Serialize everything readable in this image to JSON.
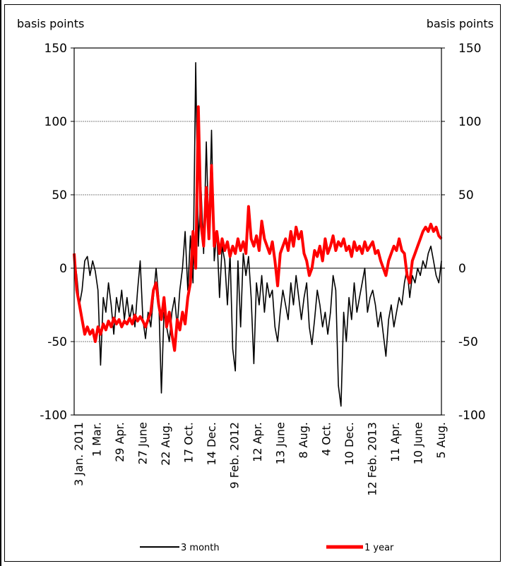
{
  "chart_data": {
    "type": "line",
    "ylabel_left": "basis points",
    "ylabel_right": "basis points",
    "ylim": [
      -100,
      150
    ],
    "yticks": [
      "150",
      "100",
      "50",
      "0",
      "-50",
      "-100"
    ],
    "grid": "horizontal",
    "legend_position": "bottom",
    "xtick_labels": [
      "3 Jan. 2011",
      "1 Mar.",
      "29 Apr.",
      "27 June",
      "22 Aug.",
      "17 Oct.",
      "14 Dec.",
      "9 Feb. 2012",
      "12 Apr.",
      "13 June",
      "8 Aug.",
      "4 Oct.",
      "10 Dec.",
      "12 Feb. 2013",
      "11 Apr.",
      "10 June",
      "5 Aug."
    ],
    "series": [
      {
        "name": "3 month",
        "color": "#000000",
        "points": [
          [
            "2011-01-03",
            8
          ],
          [
            "2011-01-10",
            -5
          ],
          [
            "2011-01-17",
            -25
          ],
          [
            "2011-01-24",
            -15
          ],
          [
            "2011-01-31",
            5
          ],
          [
            "2011-02-07",
            8
          ],
          [
            "2011-02-14",
            -5
          ],
          [
            "2011-02-21",
            5
          ],
          [
            "2011-02-28",
            -2
          ],
          [
            "2011-03-07",
            -15
          ],
          [
            "2011-03-14",
            -66
          ],
          [
            "2011-03-21",
            -20
          ],
          [
            "2011-03-28",
            -30
          ],
          [
            "2011-04-04",
            -10
          ],
          [
            "2011-04-11",
            -25
          ],
          [
            "2011-04-18",
            -45
          ],
          [
            "2011-04-25",
            -20
          ],
          [
            "2011-05-02",
            -30
          ],
          [
            "2011-05-09",
            -15
          ],
          [
            "2011-05-16",
            -35
          ],
          [
            "2011-05-23",
            -20
          ],
          [
            "2011-05-30",
            -35
          ],
          [
            "2011-06-06",
            -25
          ],
          [
            "2011-06-13",
            -40
          ],
          [
            "2011-06-20",
            -15
          ],
          [
            "2011-06-27",
            5
          ],
          [
            "2011-07-04",
            -35
          ],
          [
            "2011-07-11",
            -48
          ],
          [
            "2011-07-18",
            -30
          ],
          [
            "2011-07-25",
            -40
          ],
          [
            "2011-08-01",
            -20
          ],
          [
            "2011-08-08",
            0
          ],
          [
            "2011-08-15",
            -20
          ],
          [
            "2011-08-22",
            -85
          ],
          [
            "2011-08-29",
            -30
          ],
          [
            "2011-09-05",
            -40
          ],
          [
            "2011-09-12",
            -50
          ],
          [
            "2011-09-19",
            -30
          ],
          [
            "2011-09-26",
            -20
          ],
          [
            "2011-10-03",
            -40
          ],
          [
            "2011-10-10",
            -15
          ],
          [
            "2011-10-17",
            0
          ],
          [
            "2011-10-24",
            25
          ],
          [
            "2011-10-31",
            -15
          ],
          [
            "2011-11-07",
            22
          ],
          [
            "2011-11-14",
            -10
          ],
          [
            "2011-11-21",
            140
          ],
          [
            "2011-11-28",
            15
          ],
          [
            "2011-12-05",
            55
          ],
          [
            "2011-12-12",
            10
          ],
          [
            "2011-12-19",
            86
          ],
          [
            "2011-12-26",
            20
          ],
          [
            "2012-01-02",
            94
          ],
          [
            "2012-01-09",
            5
          ],
          [
            "2012-01-16",
            25
          ],
          [
            "2012-01-23",
            -20
          ],
          [
            "2012-01-30",
            15
          ],
          [
            "2012-02-06",
            5
          ],
          [
            "2012-02-13",
            -25
          ],
          [
            "2012-02-20",
            10
          ],
          [
            "2012-02-27",
            -55
          ],
          [
            "2012-03-05",
            -70
          ],
          [
            "2012-03-12",
            5
          ],
          [
            "2012-03-19",
            -40
          ],
          [
            "2012-03-26",
            10
          ],
          [
            "2012-04-02",
            -5
          ],
          [
            "2012-04-09",
            8
          ],
          [
            "2012-04-16",
            -20
          ],
          [
            "2012-04-23",
            -65
          ],
          [
            "2012-04-30",
            -10
          ],
          [
            "2012-05-07",
            -25
          ],
          [
            "2012-05-14",
            -5
          ],
          [
            "2012-05-21",
            -30
          ],
          [
            "2012-05-28",
            -10
          ],
          [
            "2012-06-04",
            -20
          ],
          [
            "2012-06-11",
            -15
          ],
          [
            "2012-06-18",
            -40
          ],
          [
            "2012-06-25",
            -50
          ],
          [
            "2012-07-02",
            -30
          ],
          [
            "2012-07-09",
            -15
          ],
          [
            "2012-07-16",
            -25
          ],
          [
            "2012-07-23",
            -35
          ],
          [
            "2012-07-30",
            -10
          ],
          [
            "2012-08-06",
            -25
          ],
          [
            "2012-08-13",
            -5
          ],
          [
            "2012-08-20",
            -20
          ],
          [
            "2012-08-27",
            -35
          ],
          [
            "2012-09-03",
            -20
          ],
          [
            "2012-09-10",
            -10
          ],
          [
            "2012-09-17",
            -40
          ],
          [
            "2012-09-24",
            -52
          ],
          [
            "2012-10-01",
            -35
          ],
          [
            "2012-10-08",
            -15
          ],
          [
            "2012-10-15",
            -25
          ],
          [
            "2012-10-22",
            -40
          ],
          [
            "2012-10-29",
            -30
          ],
          [
            "2012-11-05",
            -45
          ],
          [
            "2012-11-12",
            -30
          ],
          [
            "2012-11-19",
            -5
          ],
          [
            "2012-11-26",
            -15
          ],
          [
            "2012-12-03",
            -80
          ],
          [
            "2012-12-10",
            -94
          ],
          [
            "2012-12-17",
            -30
          ],
          [
            "2012-12-24",
            -50
          ],
          [
            "2012-12-31",
            -20
          ],
          [
            "2013-01-07",
            -35
          ],
          [
            "2013-01-14",
            -10
          ],
          [
            "2013-01-21",
            -30
          ],
          [
            "2013-01-28",
            -20
          ],
          [
            "2013-02-04",
            -10
          ],
          [
            "2013-02-11",
            0
          ],
          [
            "2013-02-18",
            -30
          ],
          [
            "2013-02-25",
            -20
          ],
          [
            "2013-03-04",
            -15
          ],
          [
            "2013-03-11",
            -25
          ],
          [
            "2013-03-18",
            -40
          ],
          [
            "2013-03-25",
            -30
          ],
          [
            "2013-04-01",
            -45
          ],
          [
            "2013-04-08",
            -60
          ],
          [
            "2013-04-15",
            -35
          ],
          [
            "2013-04-22",
            -25
          ],
          [
            "2013-04-29",
            -40
          ],
          [
            "2013-05-06",
            -30
          ],
          [
            "2013-05-13",
            -20
          ],
          [
            "2013-05-20",
            -25
          ],
          [
            "2013-05-27",
            -10
          ],
          [
            "2013-06-03",
            0
          ],
          [
            "2013-06-10",
            -20
          ],
          [
            "2013-06-17",
            -5
          ],
          [
            "2013-06-24",
            -10
          ],
          [
            "2013-07-01",
            0
          ],
          [
            "2013-07-08",
            -5
          ],
          [
            "2013-07-15",
            5
          ],
          [
            "2013-07-22",
            0
          ],
          [
            "2013-07-29",
            10
          ],
          [
            "2013-08-05",
            15
          ],
          [
            "2013-08-12",
            5
          ],
          [
            "2013-08-19",
            -5
          ],
          [
            "2013-08-26",
            -10
          ],
          [
            "2013-09-02",
            5
          ]
        ]
      },
      {
        "name": "1 year",
        "color": "#ff0000",
        "points": [
          [
            "2011-01-03",
            10
          ],
          [
            "2011-01-10",
            -15
          ],
          [
            "2011-01-17",
            -25
          ],
          [
            "2011-01-24",
            -35
          ],
          [
            "2011-01-31",
            -45
          ],
          [
            "2011-02-07",
            -40
          ],
          [
            "2011-02-14",
            -45
          ],
          [
            "2011-02-21",
            -42
          ],
          [
            "2011-02-28",
            -50
          ],
          [
            "2011-03-07",
            -40
          ],
          [
            "2011-03-14",
            -45
          ],
          [
            "2011-03-21",
            -38
          ],
          [
            "2011-03-28",
            -42
          ],
          [
            "2011-04-04",
            -36
          ],
          [
            "2011-04-11",
            -40
          ],
          [
            "2011-04-18",
            -34
          ],
          [
            "2011-04-25",
            -38
          ],
          [
            "2011-05-02",
            -35
          ],
          [
            "2011-05-09",
            -40
          ],
          [
            "2011-05-16",
            -36
          ],
          [
            "2011-05-23",
            -38
          ],
          [
            "2011-05-30",
            -34
          ],
          [
            "2011-06-06",
            -38
          ],
          [
            "2011-06-13",
            -32
          ],
          [
            "2011-06-20",
            -36
          ],
          [
            "2011-06-27",
            -33
          ],
          [
            "2011-07-04",
            -36
          ],
          [
            "2011-07-11",
            -40
          ],
          [
            "2011-07-18",
            -35
          ],
          [
            "2011-07-25",
            -30
          ],
          [
            "2011-08-01",
            -15
          ],
          [
            "2011-08-08",
            -10
          ],
          [
            "2011-08-15",
            -25
          ],
          [
            "2011-08-22",
            -35
          ],
          [
            "2011-08-29",
            -20
          ],
          [
            "2011-09-05",
            -40
          ],
          [
            "2011-09-12",
            -30
          ],
          [
            "2011-09-19",
            -45
          ],
          [
            "2011-09-26",
            -56
          ],
          [
            "2011-10-03",
            -35
          ],
          [
            "2011-10-10",
            -42
          ],
          [
            "2011-10-17",
            -30
          ],
          [
            "2011-10-24",
            -38
          ],
          [
            "2011-10-31",
            -20
          ],
          [
            "2011-11-07",
            -10
          ],
          [
            "2011-11-14",
            25
          ],
          [
            "2011-11-21",
            0
          ],
          [
            "2011-11-28",
            110
          ],
          [
            "2011-12-05",
            30
          ],
          [
            "2011-12-12",
            15
          ],
          [
            "2011-12-19",
            55
          ],
          [
            "2011-12-26",
            20
          ],
          [
            "2012-01-02",
            70
          ],
          [
            "2012-01-09",
            15
          ],
          [
            "2012-01-16",
            25
          ],
          [
            "2012-01-23",
            10
          ],
          [
            "2012-01-30",
            20
          ],
          [
            "2012-02-06",
            12
          ],
          [
            "2012-02-13",
            18
          ],
          [
            "2012-02-20",
            8
          ],
          [
            "2012-02-27",
            15
          ],
          [
            "2012-03-05",
            10
          ],
          [
            "2012-03-12",
            20
          ],
          [
            "2012-03-19",
            12
          ],
          [
            "2012-03-26",
            18
          ],
          [
            "2012-04-02",
            10
          ],
          [
            "2012-04-09",
            42
          ],
          [
            "2012-04-16",
            20
          ],
          [
            "2012-04-23",
            15
          ],
          [
            "2012-04-30",
            22
          ],
          [
            "2012-05-07",
            12
          ],
          [
            "2012-05-14",
            32
          ],
          [
            "2012-05-21",
            20
          ],
          [
            "2012-05-28",
            15
          ],
          [
            "2012-06-04",
            10
          ],
          [
            "2012-06-11",
            18
          ],
          [
            "2012-06-18",
            5
          ],
          [
            "2012-06-25",
            -12
          ],
          [
            "2012-07-02",
            10
          ],
          [
            "2012-07-09",
            15
          ],
          [
            "2012-07-16",
            20
          ],
          [
            "2012-07-23",
            12
          ],
          [
            "2012-07-30",
            25
          ],
          [
            "2012-08-06",
            15
          ],
          [
            "2012-08-13",
            28
          ],
          [
            "2012-08-20",
            20
          ],
          [
            "2012-08-27",
            25
          ],
          [
            "2012-09-03",
            10
          ],
          [
            "2012-09-10",
            5
          ],
          [
            "2012-09-17",
            -5
          ],
          [
            "2012-09-24",
            0
          ],
          [
            "2012-10-01",
            12
          ],
          [
            "2012-10-08",
            8
          ],
          [
            "2012-10-15",
            15
          ],
          [
            "2012-10-22",
            5
          ],
          [
            "2012-10-29",
            20
          ],
          [
            "2012-11-05",
            10
          ],
          [
            "2012-11-12",
            15
          ],
          [
            "2012-11-19",
            22
          ],
          [
            "2012-11-26",
            12
          ],
          [
            "2012-12-03",
            18
          ],
          [
            "2012-12-10",
            15
          ],
          [
            "2012-12-17",
            20
          ],
          [
            "2012-12-24",
            12
          ],
          [
            "2012-12-31",
            15
          ],
          [
            "2013-01-07",
            8
          ],
          [
            "2013-01-14",
            18
          ],
          [
            "2013-01-21",
            12
          ],
          [
            "2013-01-28",
            15
          ],
          [
            "2013-02-04",
            10
          ],
          [
            "2013-02-11",
            18
          ],
          [
            "2013-02-18",
            12
          ],
          [
            "2013-02-25",
            15
          ],
          [
            "2013-03-04",
            18
          ],
          [
            "2013-03-11",
            10
          ],
          [
            "2013-03-18",
            12
          ],
          [
            "2013-03-25",
            5
          ],
          [
            "2013-04-01",
            0
          ],
          [
            "2013-04-08",
            -5
          ],
          [
            "2013-04-15",
            5
          ],
          [
            "2013-04-22",
            10
          ],
          [
            "2013-04-29",
            15
          ],
          [
            "2013-05-06",
            12
          ],
          [
            "2013-05-13",
            20
          ],
          [
            "2013-05-20",
            12
          ],
          [
            "2013-05-27",
            10
          ],
          [
            "2013-06-03",
            -5
          ],
          [
            "2013-06-10",
            -10
          ],
          [
            "2013-06-17",
            5
          ],
          [
            "2013-06-24",
            10
          ],
          [
            "2013-07-01",
            15
          ],
          [
            "2013-07-08",
            20
          ],
          [
            "2013-07-15",
            25
          ],
          [
            "2013-07-22",
            28
          ],
          [
            "2013-07-29",
            25
          ],
          [
            "2013-08-05",
            30
          ],
          [
            "2013-08-12",
            25
          ],
          [
            "2013-08-19",
            28
          ],
          [
            "2013-08-26",
            22
          ],
          [
            "2013-09-02",
            20
          ]
        ]
      }
    ]
  }
}
